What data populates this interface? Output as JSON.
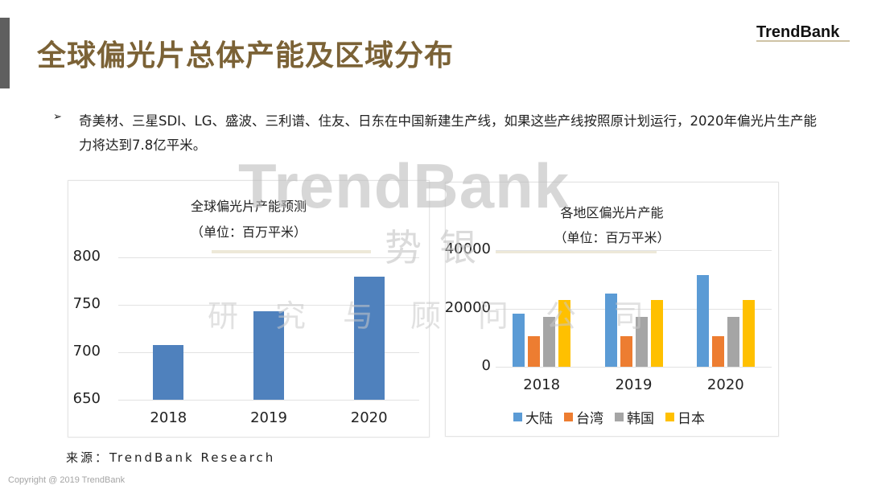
{
  "header": {
    "title": "全球偏光片总体产能及区域分布",
    "brand": "TrendBank"
  },
  "intro": {
    "bullet_icon": "arrowhead-bullet-icon",
    "bullet_glyph": "➢",
    "text": "奇美材、三星SDI、LG、盛波、三利谱、住友、日东在中国新建生产线，如果这些产线按照原计划运行，2020年偏光片生产能力将达到7.8亿平米。"
  },
  "watermark": {
    "big": "TrendBank",
    "mid": "势银",
    "small": "研究与顾问公司"
  },
  "colors": {
    "title": "#7b6236",
    "left_bar": "#4f81bd",
    "mainland": "#5b9bd5",
    "taiwan": "#ed7d31",
    "korea": "#a5a5a5",
    "japan": "#ffc000"
  },
  "chart_data": [
    {
      "type": "bar",
      "title": "全球偏光片产能预测",
      "subtitle": "（单位：百万平米）",
      "categories": [
        "2018",
        "2019",
        "2020"
      ],
      "values": [
        708,
        743,
        780
      ],
      "xlabel": "",
      "ylabel": "",
      "ylim": [
        650,
        800
      ],
      "yticks": [
        "800",
        "750",
        "700",
        "650"
      ],
      "grid": true,
      "legend": null
    },
    {
      "type": "bar",
      "title": "各地区偏光片产能",
      "subtitle": "（单位：百万平米）",
      "categories": [
        "2018",
        "2019",
        "2020"
      ],
      "series": [
        {
          "name": "大陆",
          "values": [
            18300,
            25000,
            31400
          ]
        },
        {
          "name": "台湾",
          "values": [
            10500,
            10500,
            10500
          ]
        },
        {
          "name": "韩国",
          "values": [
            17200,
            17200,
            17200
          ]
        },
        {
          "name": "日本",
          "values": [
            22800,
            22800,
            22800
          ]
        }
      ],
      "xlabel": "",
      "ylabel": "",
      "ylim": [
        0,
        40000
      ],
      "yticks": [
        "40000",
        "20000",
        "0"
      ],
      "grid": true,
      "legend_position": "bottom"
    }
  ],
  "footer": {
    "source": "来源：TrendBank Research",
    "copyright": "Copyright @ 2019 TrendBank"
  }
}
